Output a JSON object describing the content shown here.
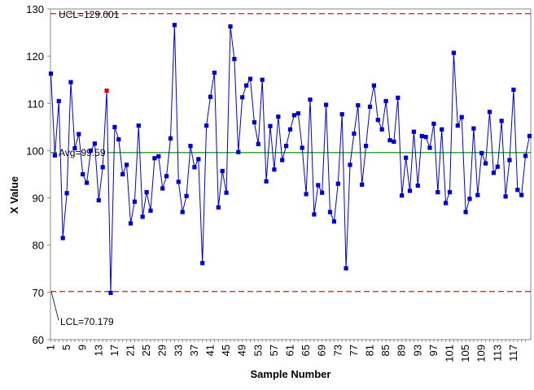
{
  "chart_data": {
    "type": "line",
    "title": "",
    "xlabel": "Sample Number",
    "ylabel": "X Value",
    "ylim": [
      60,
      130
    ],
    "yticks": [
      60,
      70,
      80,
      90,
      100,
      110,
      120,
      130
    ],
    "xlim": [
      1,
      120
    ],
    "xticks": [
      1,
      5,
      9,
      13,
      17,
      21,
      25,
      29,
      33,
      37,
      41,
      45,
      49,
      53,
      57,
      61,
      65,
      69,
      73,
      77,
      81,
      85,
      89,
      93,
      97,
      101,
      105,
      109,
      113,
      117
    ],
    "colors": {
      "series": "#0000CC",
      "marker": "#0000CC",
      "out_of_control": "#E00000",
      "center_line": "#008000",
      "limit_lines": "#C00000"
    },
    "ucl": {
      "value": 129.001,
      "label": "UCL=129.001"
    },
    "avg": {
      "value": 99.59,
      "label": "Avg=99.59"
    },
    "lcl": {
      "value": 70.179,
      "label": "LCL=70.179"
    },
    "out_of_control_points": [
      15
    ],
    "series": [
      {
        "values": [
          116.3,
          99.0,
          110.5,
          81.5,
          91.0,
          114.5,
          100.5,
          103.5,
          95.0,
          93.2,
          100.0,
          101.5,
          89.5,
          96.5,
          112.7,
          69.9,
          105.0,
          102.4,
          95.0,
          97.0,
          84.6,
          89.2,
          105.3,
          86.0,
          91.2,
          87.3,
          98.4,
          98.8,
          92.0,
          94.6,
          102.6,
          126.6,
          93.4,
          87.0,
          90.4,
          101.0,
          96.5,
          98.2,
          76.2,
          105.3,
          111.4,
          116.5,
          88.0,
          95.7,
          91.1,
          126.3,
          119.4,
          99.7,
          111.3,
          113.8,
          115.2,
          106.0,
          101.4,
          115.0,
          93.5,
          105.2,
          96.0,
          107.2,
          98.0,
          101.0,
          104.5,
          107.5,
          107.9,
          100.6,
          90.8,
          110.8,
          86.5,
          92.7,
          91.1,
          109.7,
          87.0,
          85.0,
          93.0,
          107.7,
          75.1,
          97.0,
          103.6,
          109.6,
          92.8,
          101.0,
          109.3,
          113.8,
          106.5,
          104.5,
          110.5,
          102.2,
          101.9,
          111.2,
          90.5,
          98.5,
          91.5,
          104.0,
          92.6,
          103.1,
          102.9,
          100.6,
          105.7,
          91.2,
          104.5,
          88.9,
          91.2,
          120.7,
          105.3,
          107.1,
          87.0,
          89.8,
          104.7,
          90.6,
          99.5,
          97.3,
          108.2,
          95.3,
          96.6,
          106.3,
          90.3,
          98.0,
          112.9,
          91.7,
          90.6,
          98.9,
          103.1
        ]
      }
    ]
  }
}
